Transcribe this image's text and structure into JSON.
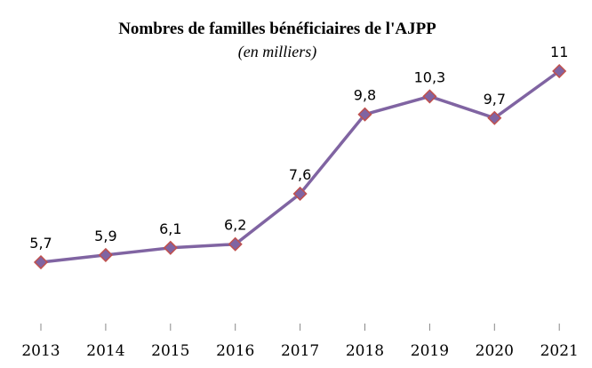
{
  "chart_data": {
    "type": "line",
    "title": "Nombres de familles  bénéficiaires  de l'AJPP",
    "subtitle": "(en milliers)",
    "categories": [
      "2013",
      "2014",
      "2015",
      "2016",
      "2017",
      "2018",
      "2019",
      "2020",
      "2021"
    ],
    "series": [
      {
        "values": [
          5.7,
          5.9,
          6.1,
          6.2,
          7.6,
          9.8,
          10.3,
          9.7,
          11
        ],
        "labels": [
          "5,7",
          "5,9",
          "6,1",
          "6,2",
          "7,6",
          "9,8",
          "10,3",
          "9,7",
          "11"
        ]
      }
    ],
    "xlabel": "",
    "ylabel": "",
    "ylim": [
      4,
      12
    ],
    "y_axis_visible": false,
    "grid": false,
    "marker": "diamond",
    "colors": {
      "line": "#8064A2",
      "marker_fill": "#8064A2",
      "marker_edge": "#C0504D",
      "tick": "#888888"
    }
  }
}
